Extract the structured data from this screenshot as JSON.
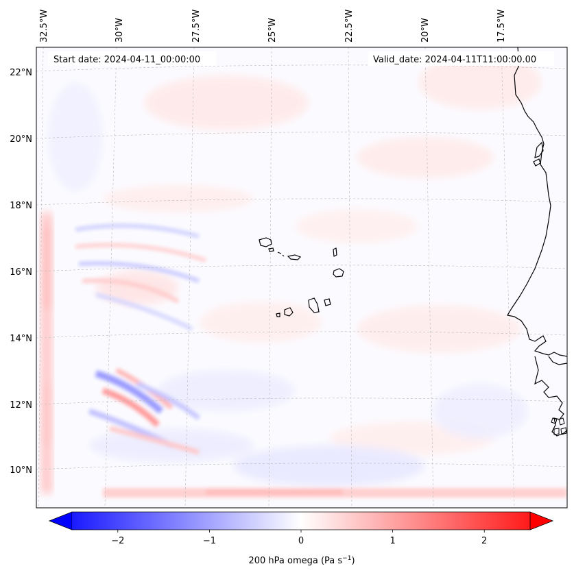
{
  "header": {
    "start_date": "Start date: 2024-04-11_00:00:00",
    "valid_date": "Valid_date: 2024-04-11T11:00:00.00"
  },
  "map": {
    "lon_labels": [
      "32.5°W",
      "30°W",
      "27.5°W",
      "25°W",
      "22.5°W",
      "20°W",
      "17.5°W"
    ],
    "lat_labels": [
      "22°N",
      "20°N",
      "18°N",
      "16°N",
      "14°N",
      "12°N",
      "10°N"
    ],
    "gridlines": true,
    "region": "Cabo Verde islands and West African coast (Senegal, Gambia, Guinea-Bissau)"
  },
  "colorbar": {
    "ticks": [
      "−2",
      "−1",
      "0",
      "1",
      "2"
    ],
    "tick_values": [
      -2,
      -1,
      0,
      1,
      2
    ],
    "range": [
      -2.5,
      2.5
    ],
    "label_prefix": "200 hPa omega (Pa s",
    "label_exp": "−1",
    "label_suffix": ")",
    "colors": {
      "negative": "#0000ff",
      "zero": "#ffffff",
      "positive": "#ff0000"
    }
  }
}
